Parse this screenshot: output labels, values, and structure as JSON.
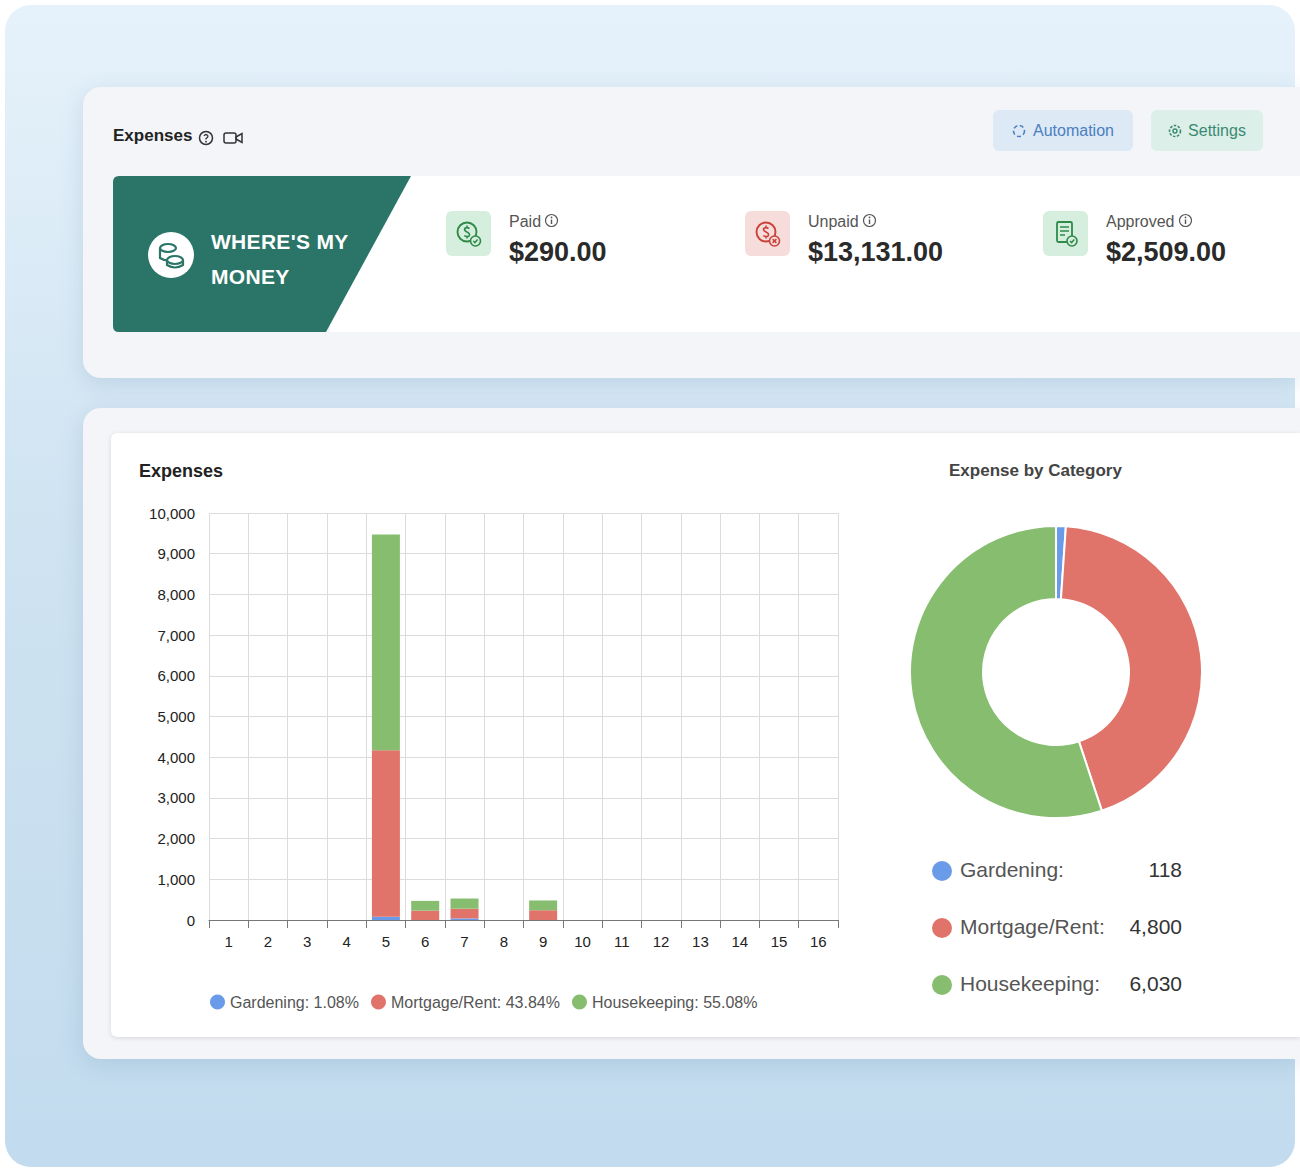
{
  "header": {
    "title": "Expenses",
    "buttons": [
      "Automation",
      "Settings"
    ],
    "banner": [
      "WHERE'S MY",
      "MONEY"
    ],
    "stats": [
      {
        "label": "Paid",
        "value": "$290.00"
      },
      {
        "label": "Unpaid",
        "value": "$13,131.00"
      },
      {
        "label": "Approved",
        "value": "$2,509.00"
      }
    ]
  },
  "chart_data": [
    {
      "type": "bar",
      "title": "Expenses",
      "categories": [
        "1",
        "2",
        "3",
        "4",
        "5",
        "6",
        "7",
        "8",
        "9",
        "10",
        "11",
        "12",
        "13",
        "14",
        "15",
        "16"
      ],
      "series": [
        {
          "name": "Gardening: 1.08%",
          "color": "#6a9be8",
          "values": [
            0,
            0,
            0,
            0,
            80,
            0,
            38,
            0,
            0,
            0,
            0,
            0,
            0,
            0,
            0,
            0
          ]
        },
        {
          "name": "Mortgage/Rent: 43.84%",
          "color": "#e0736a",
          "values": [
            0,
            0,
            0,
            0,
            4090,
            230,
            240,
            0,
            240,
            0,
            0,
            0,
            0,
            0,
            0,
            0
          ]
        },
        {
          "name": "Housekeeping: 55.08%",
          "color": "#86bd6f",
          "values": [
            0,
            0,
            0,
            0,
            5300,
            240,
            250,
            0,
            240,
            0,
            0,
            0,
            0,
            0,
            0,
            0
          ]
        }
      ],
      "stacked": true,
      "grid": true,
      "legend": "bottom",
      "ylim": [
        0,
        10000
      ],
      "yticks": [
        0,
        {
          "value": 1000,
          "label": "1,000"
        },
        {
          "value": 2000,
          "label": "2,000"
        },
        {
          "value": 3000,
          "label": "3,000"
        },
        {
          "value": 4000,
          "label": "4,000"
        },
        {
          "value": 5000,
          "label": "5,000"
        },
        {
          "value": 6000,
          "label": "6,000"
        },
        {
          "value": 7000,
          "label": "7,000"
        },
        {
          "value": 8000,
          "label": "8,000"
        },
        {
          "value": 9000,
          "label": "9,000"
        },
        {
          "value": 10000,
          "label": "10,000"
        }
      ]
    },
    {
      "type": "pie",
      "title": "Expense by Category",
      "categories": [
        "Gardening:",
        "Mortgage/Rent:",
        "Housekeeping:"
      ],
      "values": [
        118,
        4800,
        6030
      ],
      "value_labels": [
        "118",
        "4,800",
        "6,030"
      ],
      "colors": [
        "#6a9be8",
        "#e0736a",
        "#86bd6f"
      ],
      "legend": "bottom"
    }
  ]
}
